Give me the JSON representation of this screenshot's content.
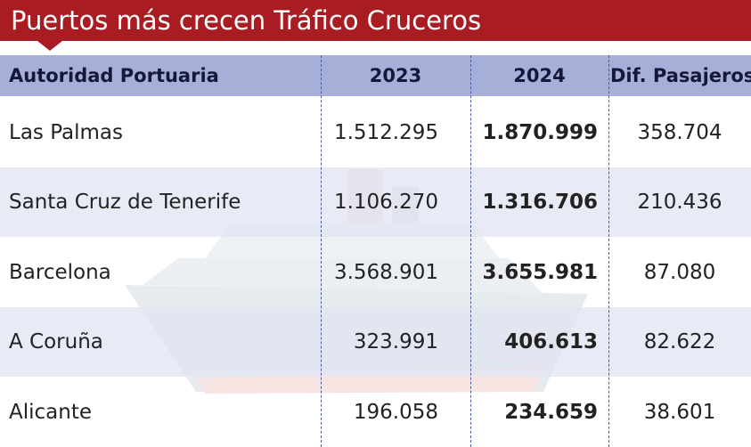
{
  "title": "Puertos más crecen Tráfico Cruceros",
  "table": {
    "header": [
      "Autoridad Portuaria",
      "2023",
      "2024",
      "Dif. Pasajeros"
    ],
    "rows": [
      [
        "Las Palmas",
        "1.512.295",
        "1.870.999",
        "358.704"
      ],
      [
        "Santa Cruz de Tenerife",
        "1.106.270",
        "1.316.706",
        "210.436"
      ],
      [
        "Barcelona",
        "3.568.901",
        "3.655.981",
        "87.080"
      ],
      [
        "A Coruña",
        "323.991",
        "406.613",
        "82.622"
      ],
      [
        "Alicante",
        "196.058",
        "234.659",
        "38.601"
      ]
    ]
  }
}
